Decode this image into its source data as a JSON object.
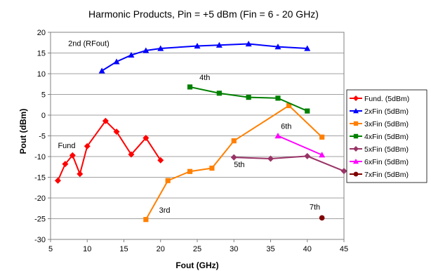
{
  "chart_data": {
    "type": "line",
    "title": "Harmonic Products, Pin = +5 dBm (Fin = 6 - 20 GHz)",
    "xlabel": "Fout (GHz)",
    "ylabel": "Pout (dBm)",
    "xlim": [
      5,
      45
    ],
    "ylim": [
      -30,
      20
    ],
    "xticks": [
      5,
      10,
      15,
      20,
      25,
      30,
      35,
      40,
      45
    ],
    "yticks": [
      -30,
      -25,
      -20,
      -15,
      -10,
      -5,
      0,
      5,
      10,
      15,
      20
    ],
    "grid": "horizontal",
    "legend_position": "right",
    "series": [
      {
        "name": "Fund. (5dBm)",
        "color": "#ff0000",
        "marker": "diamond",
        "x": [
          6,
          7,
          8,
          9,
          10,
          12.5,
          14,
          16,
          18,
          20
        ],
        "y": [
          -15.8,
          -11.8,
          -9.7,
          -14.2,
          -7.5,
          -1.4,
          -4.0,
          -9.5,
          -5.5,
          -10.9
        ]
      },
      {
        "name": "2xFin (5dBm)",
        "color": "#0000ff",
        "marker": "triangle",
        "x": [
          12,
          14,
          16,
          18,
          20,
          25,
          28,
          32,
          36,
          40
        ],
        "y": [
          10.7,
          12.9,
          14.5,
          15.6,
          16.1,
          16.7,
          16.9,
          17.2,
          16.5,
          16.1
        ]
      },
      {
        "name": "3xFin (5dBm)",
        "color": "#ff8000",
        "marker": "square",
        "x": [
          18,
          21,
          24,
          27,
          30,
          37.5,
          42
        ],
        "y": [
          -25.2,
          -15.8,
          -13.6,
          -12.8,
          -6.2,
          2.3,
          -5.3
        ]
      },
      {
        "name": "4xFin (5dBm)",
        "color": "#008000",
        "marker": "square",
        "x": [
          24,
          28,
          32,
          36,
          40
        ],
        "y": [
          6.8,
          5.3,
          4.3,
          4.1,
          1.0
        ]
      },
      {
        "name": "5xFin (5dBm)",
        "color": "#993366",
        "marker": "diamond",
        "x": [
          30,
          35,
          40,
          45
        ],
        "y": [
          -10.2,
          -10.5,
          -9.9,
          -13.5
        ]
      },
      {
        "name": "6xFin (5dBm)",
        "color": "#ff00ff",
        "marker": "triangle",
        "x": [
          36,
          42
        ],
        "y": [
          -5.0,
          -9.6
        ]
      },
      {
        "name": "7xFin (5dBm)",
        "color": "#800000",
        "marker": "circle",
        "x": [
          42
        ],
        "y": [
          -24.8
        ]
      }
    ],
    "annotations": [
      {
        "text": "2nd (RFout)",
        "x": 7.4,
        "y": 16.7
      },
      {
        "text": "4th",
        "x": 25.3,
        "y": 8.5
      },
      {
        "text": "Fund",
        "x": 6.0,
        "y": -8.0
      },
      {
        "text": "6th",
        "x": 36.4,
        "y": -3.3
      },
      {
        "text": "5th",
        "x": 30.0,
        "y": -12.5
      },
      {
        "text": "3rd",
        "x": 19.8,
        "y": -23.6
      },
      {
        "text": "7th",
        "x": 40.3,
        "y": -22.8
      }
    ]
  }
}
